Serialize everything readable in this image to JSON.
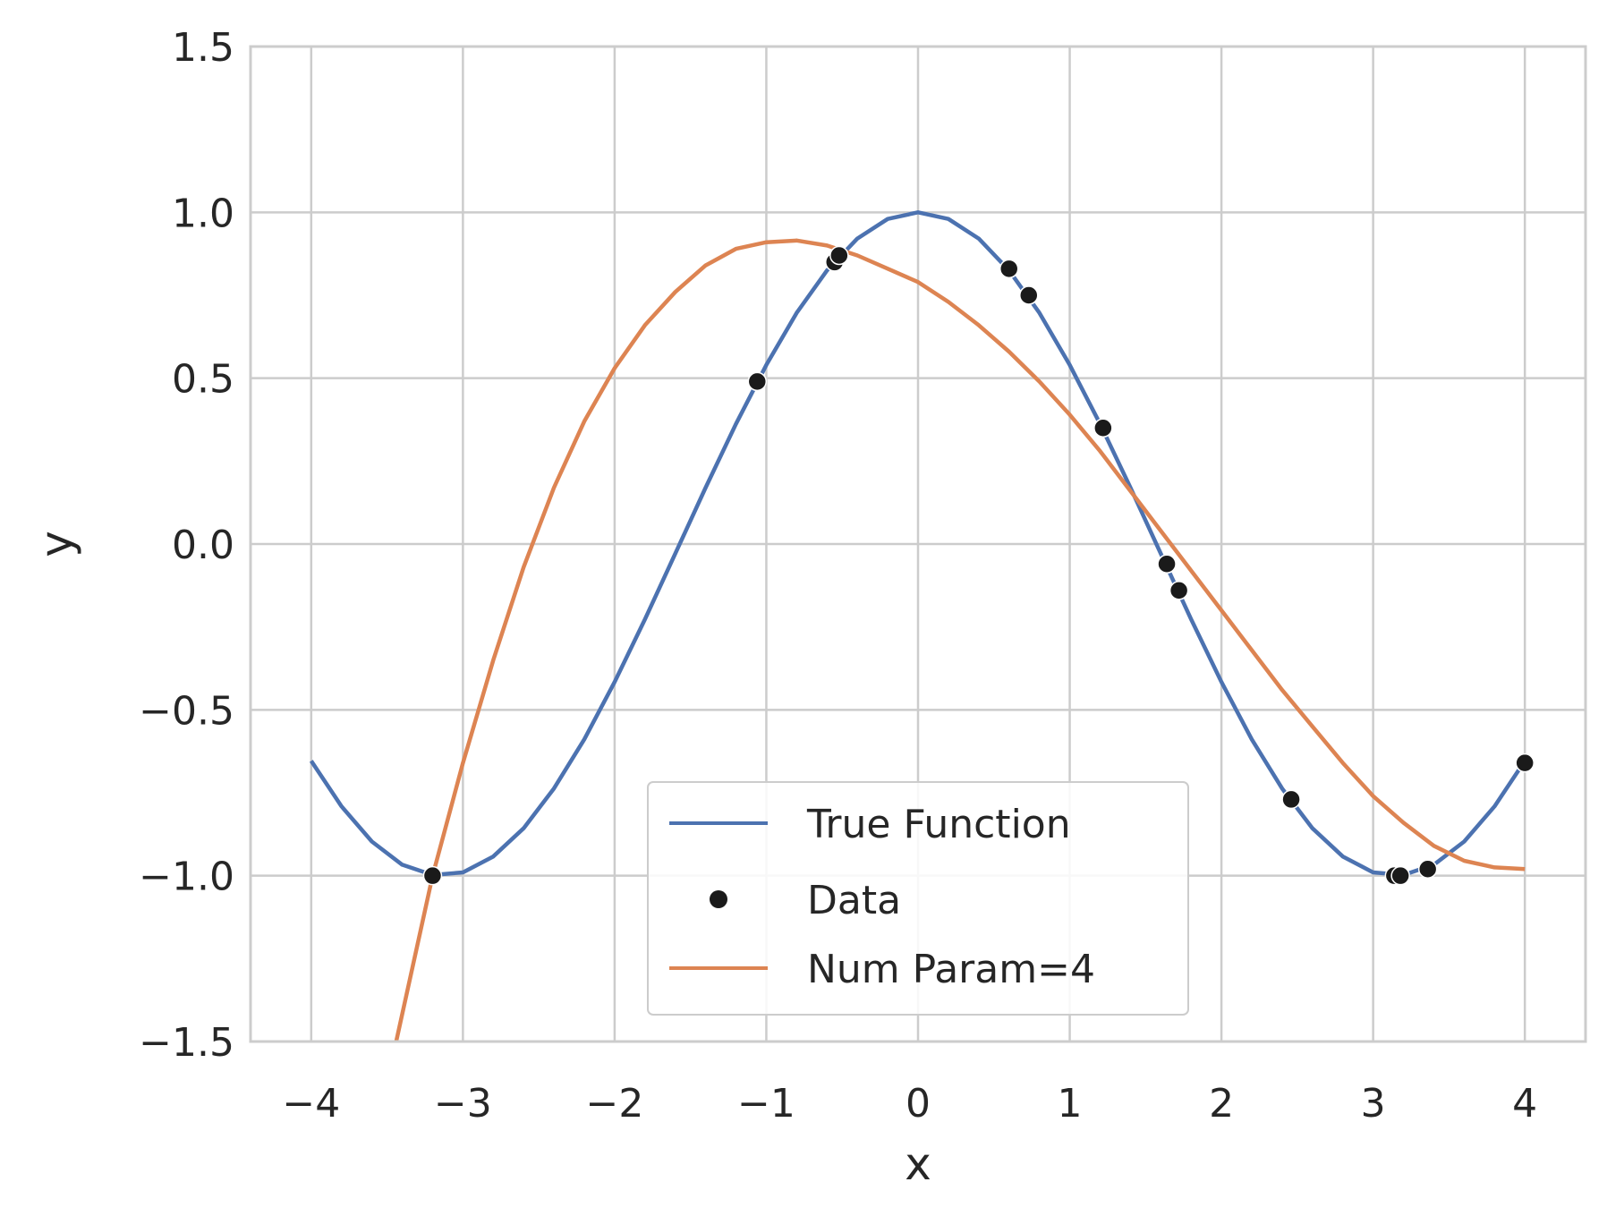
{
  "chart_data": {
    "type": "line",
    "title": "",
    "xlabel": "x",
    "ylabel": "y",
    "xlim": [
      -4.4,
      4.4
    ],
    "ylim": [
      -1.5,
      1.5
    ],
    "xticks": [
      -4,
      -3,
      -2,
      -1,
      0,
      1,
      2,
      3,
      4
    ],
    "xtick_labels": [
      "−4",
      "−3",
      "−2",
      "−1",
      "0",
      "1",
      "2",
      "3",
      "4"
    ],
    "yticks": [
      -1.5,
      -1.0,
      -0.5,
      0.0,
      0.5,
      1.0,
      1.5
    ],
    "ytick_labels": [
      "−1.5",
      "−1.0",
      "−0.5",
      "0.0",
      "0.5",
      "1.0",
      "1.5"
    ],
    "grid": true,
    "legend_position": "lower-center",
    "series": [
      {
        "name": "True Function",
        "kind": "line",
        "color": "#4c72b0",
        "x": [
          -4.0,
          -3.8,
          -3.6,
          -3.4,
          -3.2,
          -3.0,
          -2.8,
          -2.6,
          -2.4,
          -2.2,
          -2.0,
          -1.8,
          -1.6,
          -1.4,
          -1.2,
          -1.0,
          -0.8,
          -0.6,
          -0.4,
          -0.2,
          0.0,
          0.2,
          0.4,
          0.6,
          0.8,
          1.0,
          1.2,
          1.4,
          1.6,
          1.8,
          2.0,
          2.2,
          2.4,
          2.6,
          2.8,
          3.0,
          3.2,
          3.4,
          3.6,
          3.8,
          4.0
        ],
        "y": [
          -0.654,
          -0.791,
          -0.897,
          -0.967,
          -0.998,
          -0.99,
          -0.942,
          -0.857,
          -0.737,
          -0.589,
          -0.416,
          -0.227,
          -0.029,
          0.17,
          0.362,
          0.54,
          0.697,
          0.825,
          0.921,
          0.98,
          1.0,
          0.98,
          0.921,
          0.825,
          0.697,
          0.54,
          0.362,
          0.17,
          -0.029,
          -0.227,
          -0.416,
          -0.589,
          -0.737,
          -0.857,
          -0.942,
          -0.99,
          -0.998,
          -0.967,
          -0.897,
          -0.791,
          -0.654
        ]
      },
      {
        "name": "Data",
        "kind": "scatter",
        "color": "#1a1a1a",
        "x": [
          -3.2,
          -1.06,
          -0.55,
          -0.52,
          0.6,
          0.73,
          1.22,
          1.64,
          1.72,
          2.46,
          3.14,
          3.18,
          3.36,
          4.0
        ],
        "y": [
          -1.0,
          0.49,
          0.85,
          0.87,
          0.83,
          0.75,
          0.35,
          -0.06,
          -0.14,
          -0.77,
          -1.0,
          -1.0,
          -0.98,
          -0.66
        ]
      },
      {
        "name": "Num Param=4",
        "kind": "line",
        "color": "#dd8452",
        "x": [
          -3.44,
          -3.2,
          -3.0,
          -2.8,
          -2.6,
          -2.4,
          -2.2,
          -2.0,
          -1.8,
          -1.6,
          -1.4,
          -1.2,
          -1.0,
          -0.8,
          -0.6,
          -0.4,
          -0.2,
          0.0,
          0.2,
          0.4,
          0.6,
          0.8,
          1.0,
          1.2,
          1.4,
          1.6,
          1.8,
          2.0,
          2.2,
          2.4,
          2.6,
          2.8,
          3.0,
          3.2,
          3.4,
          3.6,
          3.8,
          4.0
        ],
        "y": [
          -1.5,
          -1.0,
          -0.66,
          -0.35,
          -0.07,
          0.17,
          0.37,
          0.53,
          0.66,
          0.76,
          0.84,
          0.89,
          0.91,
          0.915,
          0.9,
          0.87,
          0.83,
          0.79,
          0.73,
          0.66,
          0.58,
          0.49,
          0.39,
          0.28,
          0.16,
          0.04,
          -0.08,
          -0.2,
          -0.32,
          -0.44,
          -0.55,
          -0.66,
          -0.76,
          -0.84,
          -0.91,
          -0.955,
          -0.975,
          -0.98
        ]
      }
    ]
  }
}
